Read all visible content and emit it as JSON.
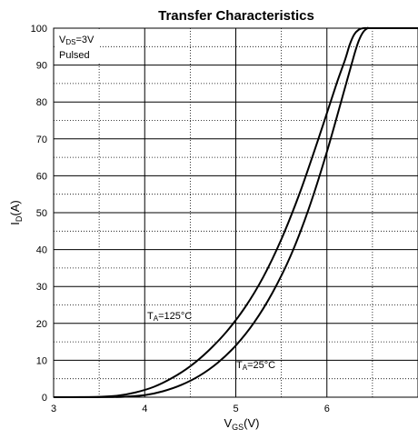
{
  "chart_data": {
    "type": "line",
    "title": "Transfer Characteristics",
    "xlabel": {
      "main": "V",
      "sub": "GS",
      "unit": "(V)"
    },
    "ylabel": {
      "main": "I",
      "sub": "D",
      "unit": "(A)"
    },
    "xlim": [
      3,
      7
    ],
    "ylim": [
      0,
      100
    ],
    "x_ticks": [
      3,
      4,
      5,
      6
    ],
    "y_ticks": [
      0,
      10,
      20,
      30,
      40,
      50,
      60,
      70,
      80,
      90,
      100
    ],
    "grid": true,
    "conditions": {
      "vds": {
        "main": "V",
        "sub": "DS",
        "value": "=3V"
      },
      "mode": "Pulsed"
    },
    "series": [
      {
        "name": {
          "main": "T",
          "sub": "A",
          "value": "=125°C"
        },
        "x": [
          3.0,
          3.3,
          3.5,
          3.7,
          3.9,
          4.1,
          4.3,
          4.5,
          4.7,
          4.9,
          5.1,
          5.3,
          5.5,
          5.7,
          5.9,
          6.1,
          6.2,
          6.25,
          6.3,
          6.35,
          6.4,
          6.5,
          7.0
        ],
        "values": [
          0,
          0.02,
          0.1,
          0.4,
          1.3,
          2.8,
          5.2,
          8.4,
          12.6,
          17.8,
          24.3,
          32.5,
          42.8,
          55.2,
          69.5,
          84.5,
          91.5,
          95.5,
          98.3,
          99.6,
          100,
          100,
          100
        ]
      },
      {
        "name": {
          "main": "T",
          "sub": "A",
          "value": "=25°C"
        },
        "x": [
          3.0,
          3.6,
          3.8,
          4.0,
          4.2,
          4.4,
          4.6,
          4.8,
          5.0,
          5.2,
          5.4,
          5.6,
          5.8,
          6.0,
          6.2,
          6.3,
          6.35,
          6.4,
          6.45,
          6.5,
          7.0
        ],
        "values": [
          0,
          0.02,
          0.15,
          0.55,
          1.6,
          3.3,
          5.8,
          9.3,
          14.0,
          20.2,
          28.2,
          38.2,
          51.0,
          66.5,
          84.0,
          92.8,
          96.6,
          99.0,
          100,
          100,
          100
        ]
      }
    ],
    "colors": {
      "line": "#000000",
      "grid": "#000000"
    }
  }
}
